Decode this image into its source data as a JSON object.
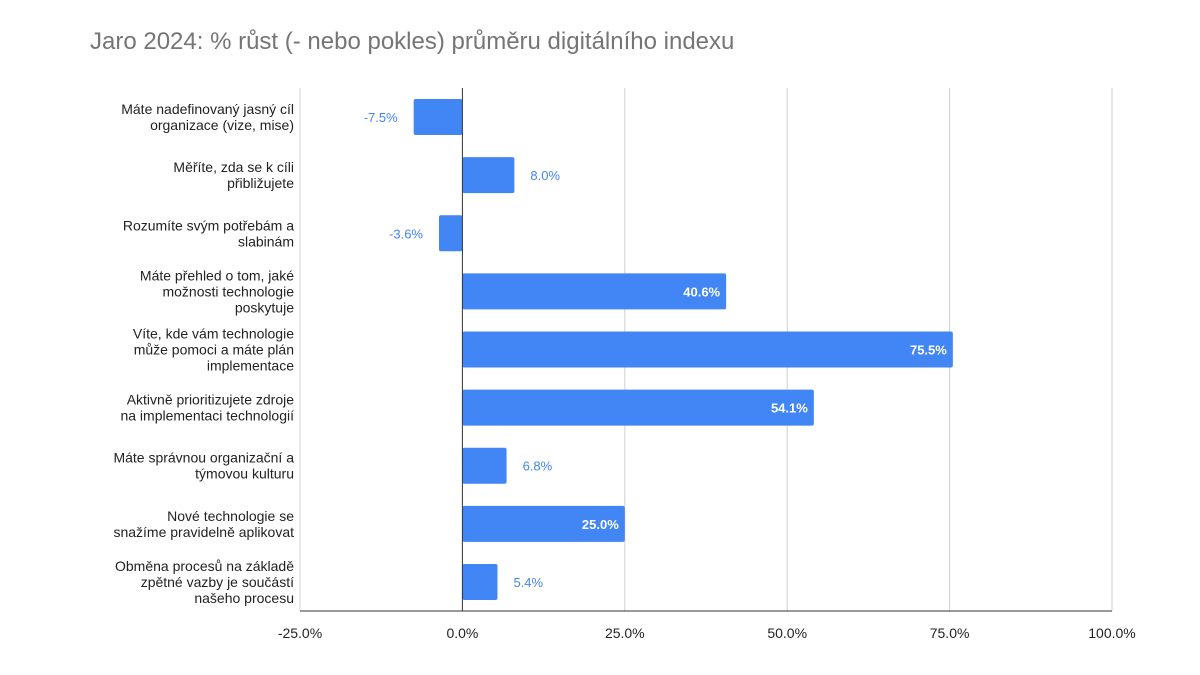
{
  "chart_data": {
    "type": "bar",
    "orientation": "horizontal",
    "title": "Jaro 2024: % růst (- nebo pokles) průměru digitálního indexu",
    "categories": [
      [
        "Máte nadefinovaný jasný cíl",
        "organizace (vize, mise)"
      ],
      [
        "Měříte, zda se k cíli",
        "přibližujete"
      ],
      [
        "Rozumíte svým potřebám a",
        "slabinám"
      ],
      [
        "Máte přehled o tom, jaké",
        "možnosti technologie",
        "poskytuje"
      ],
      [
        "Víte, kde vám technologie",
        "může pomoci a máte plán",
        "implementace"
      ],
      [
        "Aktivně prioritizujete zdroje",
        "na implementaci technologií"
      ],
      [
        "Máte správnou organizační a",
        "týmovou kulturu"
      ],
      [
        "Nové technologie se",
        "snažíme pravidelně aplikovat"
      ],
      [
        "Obměna procesů na základě",
        "zpětné vazby je součástí",
        "našeho procesu"
      ]
    ],
    "values": [
      -7.5,
      8.0,
      -3.6,
      40.6,
      75.5,
      54.1,
      6.8,
      25.0,
      5.4
    ],
    "value_labels": [
      "-7.5%",
      "8.0%",
      "-3.6%",
      "40.6%",
      "75.5%",
      "54.1%",
      "6.8%",
      "25.0%",
      "5.4%"
    ],
    "xlim": [
      -25,
      100
    ],
    "xticks": [
      -25,
      0,
      25,
      50,
      75,
      100
    ],
    "xtick_labels": [
      "-25.0%",
      "0.0%",
      "25.0%",
      "50.0%",
      "75.0%",
      "100.0%"
    ],
    "grid": true,
    "bar_color": "#4285f4",
    "legend": "none"
  }
}
